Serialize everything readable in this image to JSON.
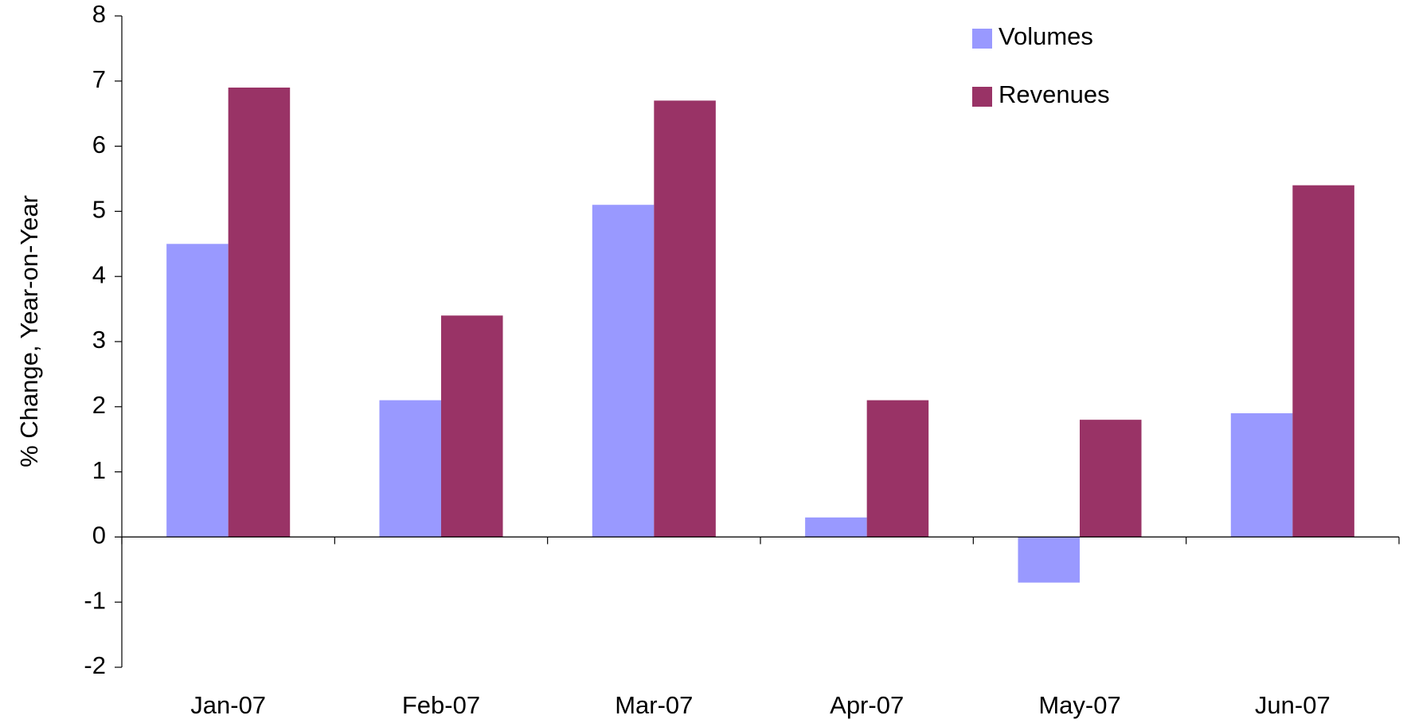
{
  "chart_data": {
    "type": "bar",
    "y_label": "% Change, Year-on-Year",
    "categories": [
      "Jan-07",
      "Feb-07",
      "Mar-07",
      "Apr-07",
      "May-07",
      "Jun-07"
    ],
    "series": [
      {
        "name": "Volumes",
        "color": "#9999ff",
        "values": [
          4.5,
          2.1,
          5.1,
          0.3,
          -0.7,
          1.9
        ]
      },
      {
        "name": "Revenues",
        "color": "#993366",
        "values": [
          6.9,
          3.4,
          6.7,
          2.1,
          1.8,
          5.4
        ]
      }
    ],
    "ylim": [
      -2,
      8
    ],
    "yticks": [
      -2,
      -1,
      0,
      1,
      2,
      3,
      4,
      5,
      6,
      7,
      8
    ],
    "grid": false,
    "legend": "top-right"
  }
}
